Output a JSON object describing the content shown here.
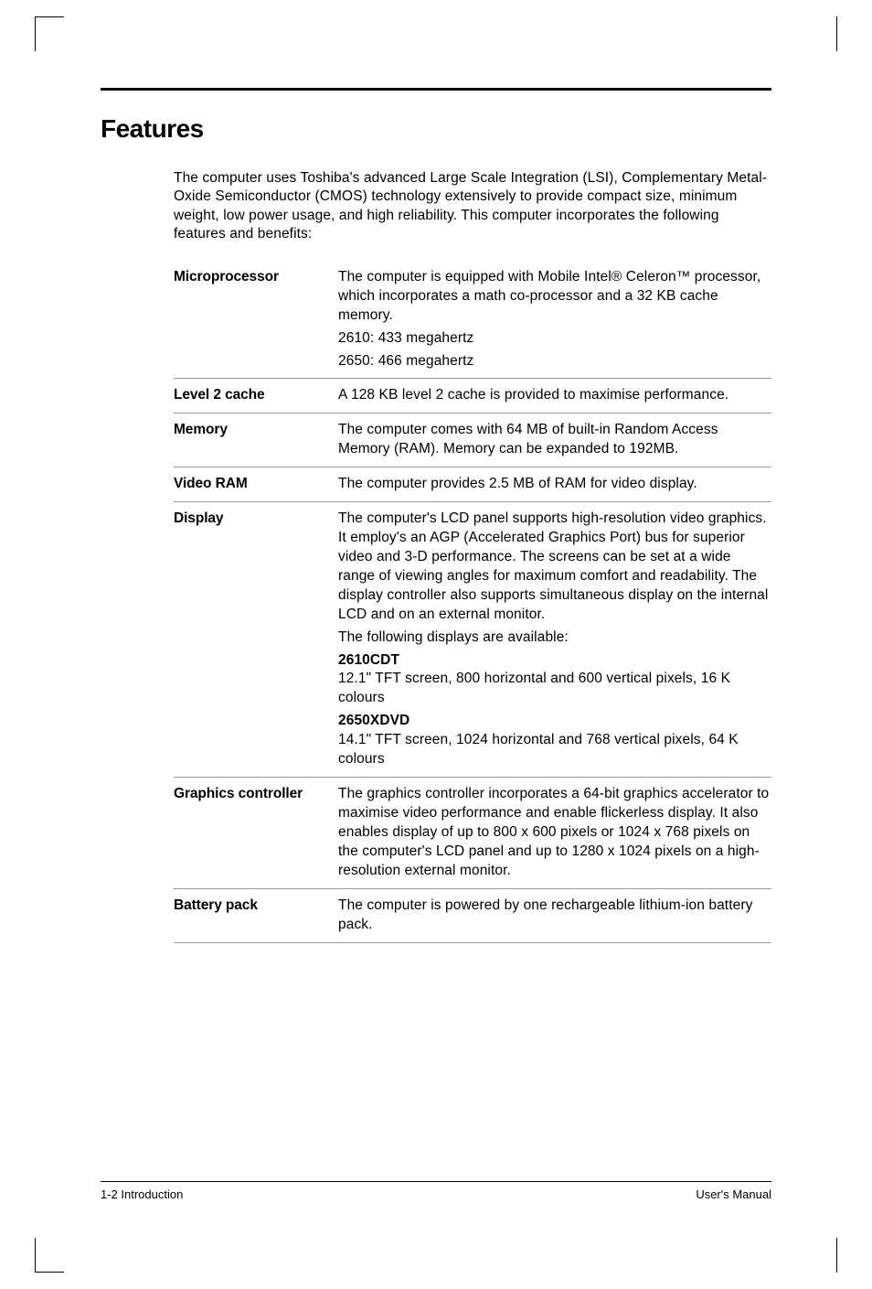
{
  "heading": "Features",
  "intro": "The computer uses Toshiba's advanced Large Scale Integration (LSI), Complementary Metal-Oxide Semiconductor (CMOS) technology extensively to provide compact size, minimum weight, low power usage, and high reliability. This computer incorporates the following features and benefits:",
  "rows": {
    "microprocessor": {
      "label": "Microprocessor",
      "p1": "The computer is equipped with Mobile Intel® Celeron™ processor, which incorporates a math co-processor and a 32 KB cache memory.",
      "p2": "2610: 433 megahertz",
      "p3": "2650: 466 megahertz"
    },
    "l2cache": {
      "label": "Level 2 cache",
      "p1": "A 128 KB level 2 cache is provided to maximise performance."
    },
    "memory": {
      "label": "Memory",
      "p1": "The computer comes with 64 MB of built-in Random Access Memory (RAM). Memory can be expanded to 192MB."
    },
    "videoram": {
      "label": "Video RAM",
      "p1": "The computer provides 2.5 MB of RAM for video display."
    },
    "display": {
      "label": "Display",
      "p1": "The computer's LCD panel supports high-resolution video graphics. It employ's an AGP (Accelerated Graphics Port) bus for superior video and 3-D performance. The screens can be set at a wide range of viewing angles for maximum comfort and readability. The display controller also supports simultaneous display on the internal LCD and on an external monitor.",
      "p2": "The following displays are available:",
      "h1": "2610CDT",
      "p3": "12.1\" TFT screen, 800 horizontal and 600 vertical pixels, 16 K colours",
      "h2": "2650XDVD",
      "p4": "14.1\" TFT screen, 1024 horizontal and 768 vertical pixels, 64 K colours"
    },
    "graphics": {
      "label": "Graphics controller",
      "p1": "The graphics controller incorporates a 64-bit graphics accelerator to maximise video performance and enable flickerless display. It also enables display of up to 800 x 600 pixels or 1024 x 768 pixels on the computer's LCD panel and up to 1280 x 1024 pixels on a high-resolution external monitor."
    },
    "battery": {
      "label": "Battery pack",
      "p1": "The computer is powered by one rechargeable lithium-ion battery pack."
    }
  },
  "footer": {
    "left": "1-2  Introduction",
    "right": "User's Manual"
  }
}
